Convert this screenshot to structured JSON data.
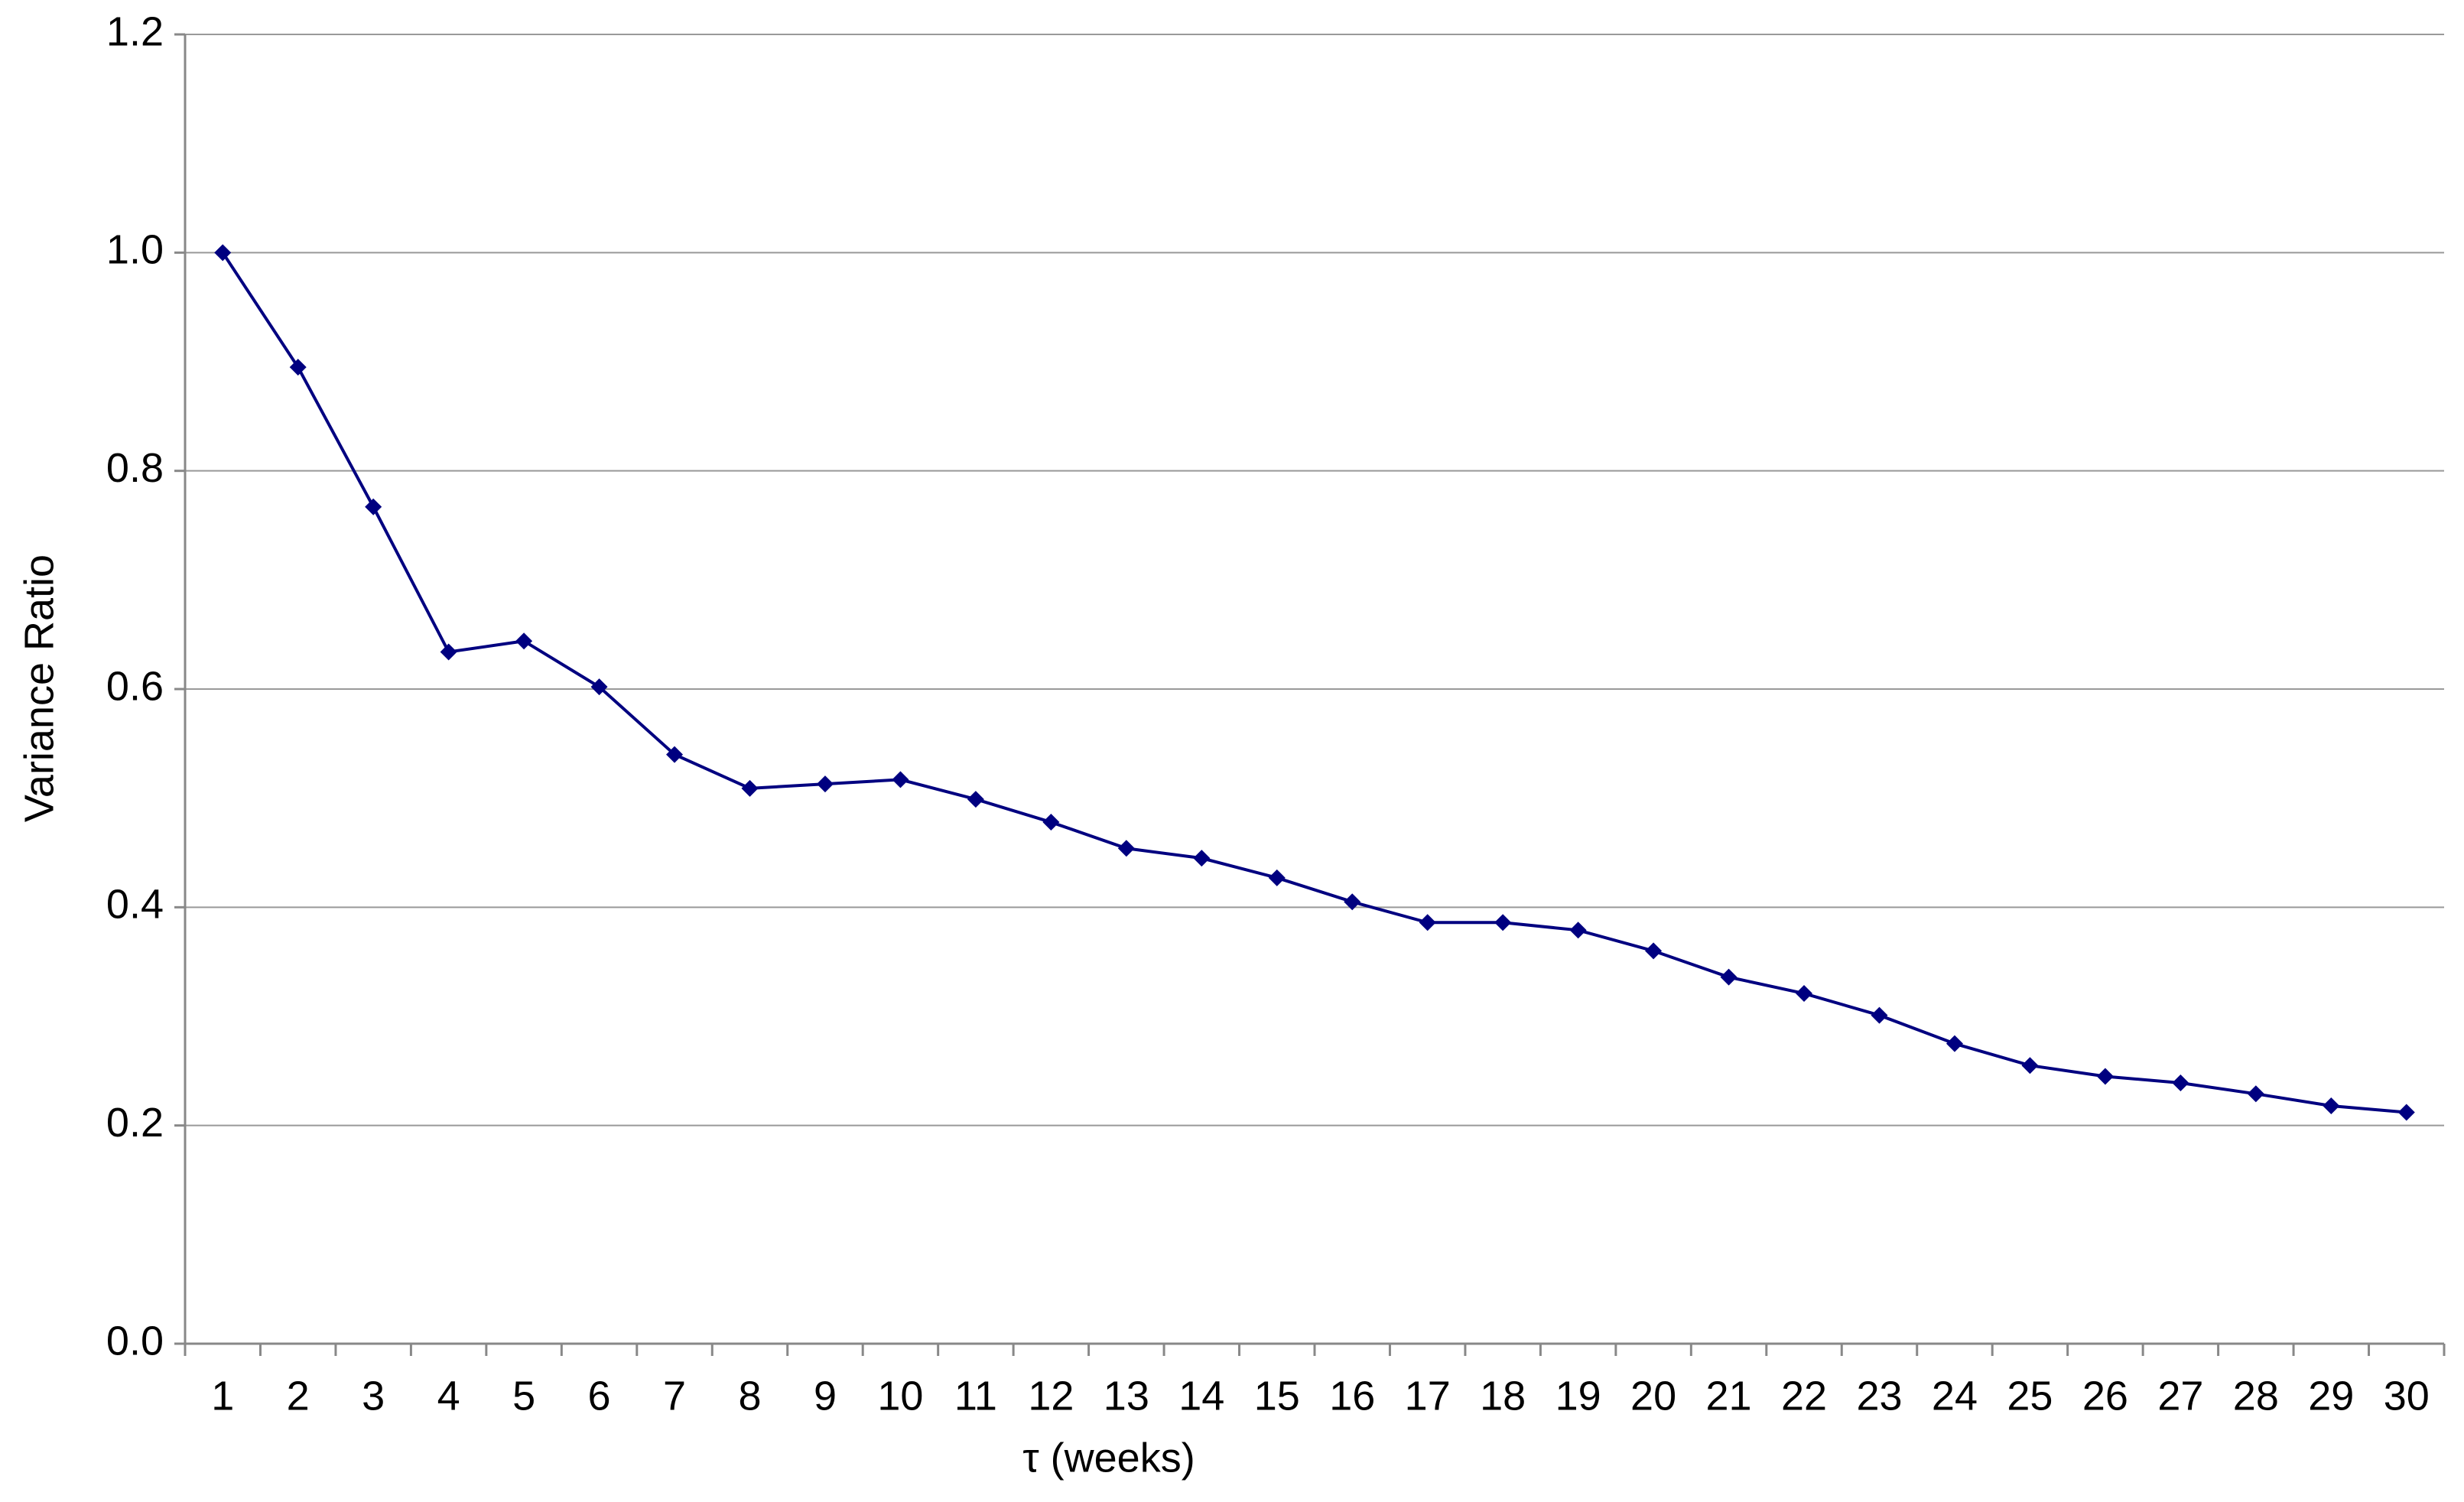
{
  "chart_data": {
    "type": "line",
    "x_label": "τ (weeks)",
    "y_label": "Variance Ratio",
    "categories": [
      "1",
      "2",
      "3",
      "4",
      "5",
      "6",
      "7",
      "8",
      "9",
      "10",
      "11",
      "12",
      "13",
      "14",
      "15",
      "16",
      "17",
      "18",
      "19",
      "20",
      "21",
      "22",
      "23",
      "24",
      "25",
      "26",
      "27",
      "28",
      "29",
      "30"
    ],
    "series": [
      {
        "color": "#000080",
        "values": [
          1.0,
          0.895,
          0.767,
          0.634,
          0.644,
          0.602,
          0.54,
          0.509,
          0.513,
          0.517,
          0.499,
          0.478,
          0.454,
          0.445,
          0.427,
          0.405,
          0.386,
          0.386,
          0.379,
          0.36,
          0.336,
          0.321,
          0.301,
          0.275,
          0.255,
          0.245,
          0.239,
          0.229,
          0.218,
          0.212
        ]
      }
    ],
    "ylim": [
      0,
      1.2
    ],
    "yticks": [
      {
        "value": 0,
        "label": "0.0"
      },
      0.2,
      0.4,
      0.6,
      0.8,
      {
        "value": 1,
        "label": "1.0"
      },
      1.2
    ],
    "grid": true
  }
}
